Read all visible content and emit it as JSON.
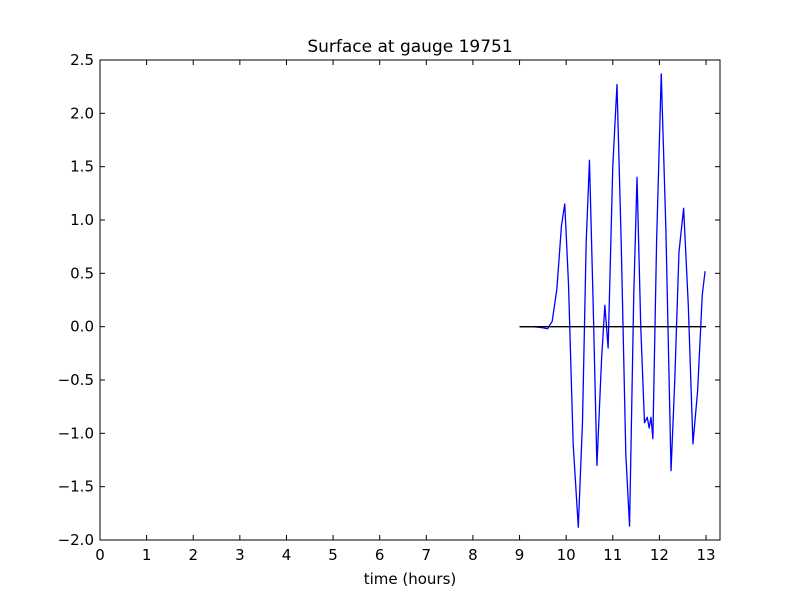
{
  "chart_data": {
    "type": "line",
    "title": "Surface at gauge 19751",
    "xlabel": "time (hours)",
    "ylabel": "",
    "xlim": [
      0,
      13.3
    ],
    "ylim": [
      -2.0,
      2.5
    ],
    "xticks": [
      0,
      1,
      2,
      3,
      4,
      5,
      6,
      7,
      8,
      9,
      10,
      11,
      12,
      13
    ],
    "xtick_labels": [
      "0",
      "1",
      "2",
      "3",
      "4",
      "5",
      "6",
      "7",
      "8",
      "9",
      "10",
      "11",
      "12",
      "13"
    ],
    "yticks": [
      -2.0,
      -1.5,
      -1.0,
      -0.5,
      0.0,
      0.5,
      1.0,
      1.5,
      2.0,
      2.5
    ],
    "ytick_labels": [
      "−2.0",
      "−1.5",
      "−1.0",
      "−0.5",
      "0.0",
      "0.5",
      "1.0",
      "1.5",
      "2.0",
      "2.5"
    ],
    "grid": false,
    "series": [
      {
        "color": "#0000ff",
        "x": [
          9.0,
          9.3,
          9.5,
          9.6,
          9.7,
          9.8,
          9.9,
          9.97,
          10.05,
          10.15,
          10.26,
          10.35,
          10.43,
          10.5,
          10.58,
          10.66,
          10.76,
          10.83,
          10.9,
          11.0,
          11.09,
          11.18,
          11.28,
          11.36,
          11.45,
          11.52,
          11.6,
          11.68,
          11.74,
          11.78,
          11.82,
          11.86,
          11.94,
          12.04,
          12.14,
          12.25,
          12.33,
          12.42,
          12.52,
          12.62,
          12.72,
          12.82,
          12.92,
          12.98
        ],
        "y": [
          0.0,
          0.0,
          -0.01,
          -0.02,
          0.05,
          0.35,
          0.95,
          1.15,
          0.4,
          -1.1,
          -1.88,
          -0.9,
          0.8,
          1.56,
          0.2,
          -1.3,
          -0.3,
          0.2,
          -0.2,
          1.5,
          2.27,
          0.8,
          -1.2,
          -1.87,
          0.3,
          1.4,
          0.0,
          -0.9,
          -0.85,
          -0.95,
          -0.85,
          -1.05,
          0.8,
          2.37,
          0.9,
          -1.35,
          -0.5,
          0.7,
          1.11,
          0.2,
          -1.1,
          -0.6,
          0.3,
          0.52
        ]
      },
      {
        "color": "#000000",
        "x": [
          9.0,
          13.0
        ],
        "y": [
          0.0,
          0.0
        ]
      }
    ]
  }
}
